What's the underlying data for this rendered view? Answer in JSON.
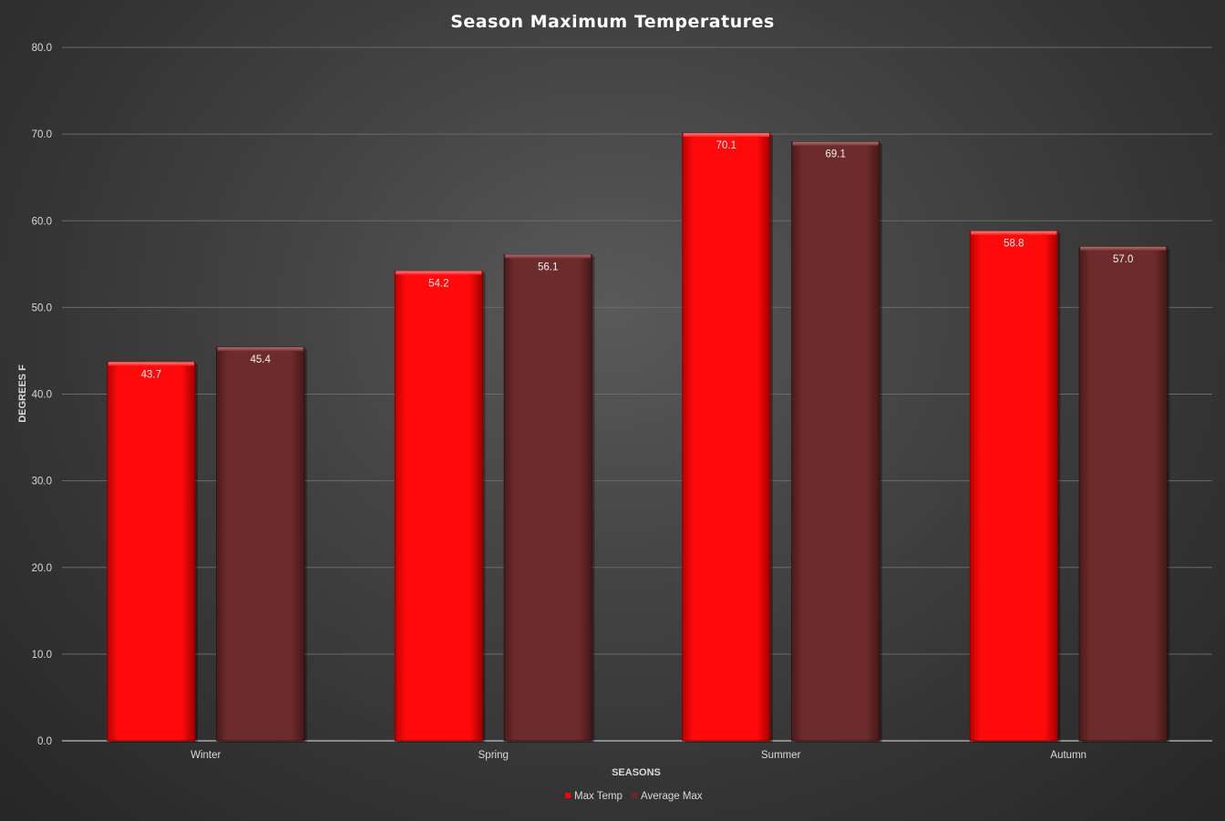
{
  "chart_data": {
    "type": "bar",
    "title": "Season Maximum Temperatures",
    "xlabel": "SEASONS",
    "ylabel": "DEGREES F",
    "ylim": [
      0,
      80
    ],
    "yticks": [
      "0.0",
      "10.0",
      "20.0",
      "30.0",
      "40.0",
      "50.0",
      "60.0",
      "70.0",
      "80.0"
    ],
    "categories": [
      "Winter",
      "Spring",
      "Summer",
      "Autumn"
    ],
    "series": [
      {
        "name": "Max Temp",
        "color": "#ff0000",
        "values": [
          43.7,
          54.2,
          70.1,
          58.8
        ],
        "labels": [
          "43.7",
          "54.2",
          "70.1",
          "58.8"
        ]
      },
      {
        "name": "Average Max",
        "color": "#6b2a2a",
        "values": [
          45.4,
          56.1,
          69.1,
          57.0
        ],
        "labels": [
          "45.4",
          "56.1",
          "69.1",
          "57.0"
        ]
      }
    ],
    "grid": true,
    "legend": "bottom"
  }
}
